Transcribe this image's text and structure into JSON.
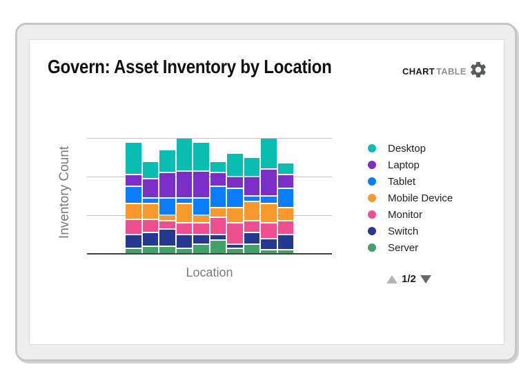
{
  "header": {
    "title": "Govern: Asset Inventory by Location",
    "tabs": [
      {
        "label": "CHART",
        "active": true
      },
      {
        "label": "TABLE",
        "active": false
      }
    ],
    "settings_icon": "gear-icon"
  },
  "chart_data": {
    "type": "bar",
    "stacked": true,
    "title": "",
    "xlabel": "Location",
    "ylabel": "Inventory Count",
    "bar_count": 10,
    "categories": [
      "",
      "",
      "",
      "",
      "",
      "",
      "",
      "",
      "",
      ""
    ],
    "x_tick_labels_visible": false,
    "y_tick_labels_visible": false,
    "ylim": [
      0,
      60
    ],
    "gridlines_y": [
      20,
      40,
      60
    ],
    "grid": true,
    "legend_position": "right",
    "legend_order": [
      "Desktop",
      "Laptop",
      "Tablet",
      "Mobile Device",
      "Monitor",
      "Switch",
      "Server"
    ],
    "series": [
      {
        "name": "Server",
        "color": "#41A169",
        "values": [
          3,
          4,
          4,
          3,
          5,
          7,
          3,
          5,
          2,
          2
        ]
      },
      {
        "name": "Switch",
        "color": "#24398F",
        "values": [
          7,
          7,
          9,
          7,
          5,
          3,
          2,
          6,
          6,
          8
        ]
      },
      {
        "name": "Monitor",
        "color": "#EF4E90",
        "values": [
          8,
          7,
          4,
          6,
          6,
          9,
          11,
          6,
          8,
          7
        ]
      },
      {
        "name": "Mobile Device",
        "color": "#F8992D",
        "values": [
          8,
          8,
          3,
          10,
          4,
          5,
          8,
          10,
          10,
          7
        ]
      },
      {
        "name": "Tablet",
        "color": "#0B7DFF",
        "values": [
          9,
          3,
          9,
          3,
          9,
          11,
          10,
          3,
          4,
          10
        ]
      },
      {
        "name": "Laptop",
        "color": "#7B2FC8",
        "values": [
          6,
          10,
          13,
          14,
          14,
          7,
          6,
          10,
          14,
          7
        ]
      },
      {
        "name": "Desktop",
        "color": "#0ABDB3",
        "values": [
          17,
          9,
          12,
          17,
          15,
          6,
          12,
          10,
          16,
          6
        ]
      }
    ]
  },
  "pagination": {
    "label": "1/2",
    "up_icon": "triangle-up",
    "down_icon": "triangle-down",
    "up_enabled": false,
    "down_enabled": true
  }
}
